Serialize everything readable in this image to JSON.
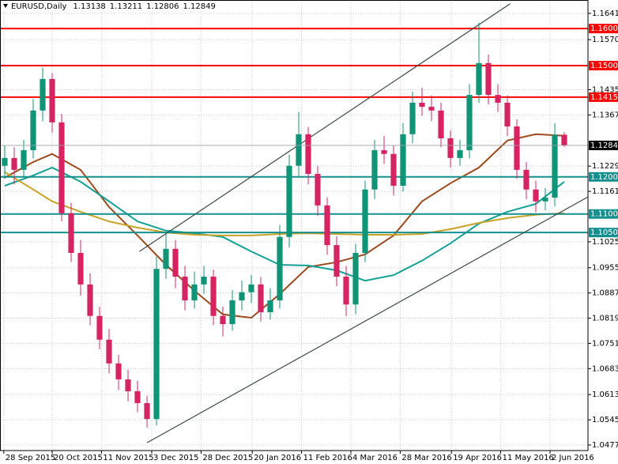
{
  "chart_data": {
    "type": "candlestick",
    "title": "EURUSD,Daily",
    "up_color": "#0f9478",
    "down_color": "#d62463",
    "open": [
      1.123,
      1.1251,
      1.1219,
      1.1272,
      1.1379,
      1.1464,
      1.1347,
      1.1102,
      1.0995,
      1.091,
      1.0825,
      1.0761,
      1.0697,
      1.0654,
      1.0622,
      1.059,
      1.0547,
      1.0952,
      1.1006,
      1.0931,
      1.0867,
      1.091,
      1.0931,
      1.0825,
      1.0803,
      1.0867,
      1.0889,
      1.091,
      1.0835,
      1.0867,
      1.1038,
      1.123,
      1.1315,
      1.1208,
      1.1123,
      1.1016,
      1.0931,
      1.0856,
      1.0995,
      1.1166,
      1.1272,
      1.1262,
      1.1176,
      1.1315,
      1.14,
      1.1389,
      1.1379,
      1.1304,
      1.1251,
      1.1272,
      1.1421,
      1.1507,
      1.1421,
      1.14,
      1.1336,
      1.1219,
      1.1166,
      1.1134,
      1.1144,
      1.13138
    ],
    "high": [
      1.1285,
      1.128,
      1.13,
      1.141,
      1.1495,
      1.148,
      1.137,
      1.113,
      1.103,
      1.094,
      1.085,
      1.079,
      1.072,
      1.068,
      1.065,
      1.061,
      1.0985,
      1.105,
      1.103,
      1.096,
      1.0945,
      1.096,
      1.095,
      1.085,
      1.0895,
      1.092,
      1.0935,
      1.093,
      1.09,
      1.107,
      1.126,
      1.1375,
      1.1335,
      1.123,
      1.1145,
      1.104,
      1.096,
      1.102,
      1.119,
      1.13,
      1.131,
      1.1285,
      1.1345,
      1.143,
      1.144,
      1.142,
      1.14,
      1.1325,
      1.13,
      1.145,
      1.1616,
      1.153,
      1.145,
      1.142,
      1.1355,
      1.124,
      1.119,
      1.117,
      1.1345,
      1.13211
    ],
    "low": [
      1.1195,
      1.118,
      1.12,
      1.125,
      1.135,
      1.132,
      1.108,
      1.097,
      1.088,
      1.08,
      1.0735,
      1.067,
      1.0625,
      1.0595,
      1.0565,
      1.0524,
      1.053,
      1.0925,
      1.09,
      1.084,
      1.0845,
      1.0885,
      1.08,
      1.077,
      1.0785,
      1.084,
      1.086,
      1.081,
      1.0815,
      1.0845,
      1.101,
      1.12,
      1.118,
      1.1095,
      1.099,
      1.0905,
      1.0825,
      1.083,
      1.097,
      1.114,
      1.1235,
      1.115,
      1.116,
      1.129,
      1.1365,
      1.135,
      1.128,
      1.1225,
      1.123,
      1.125,
      1.14,
      1.1395,
      1.1375,
      1.131,
      1.1195,
      1.114,
      1.1105,
      1.111,
      1.112,
      1.12806
    ],
    "close": [
      1.1251,
      1.1219,
      1.1272,
      1.1379,
      1.1464,
      1.1347,
      1.1102,
      1.0995,
      1.091,
      1.0825,
      1.0761,
      1.0697,
      1.0654,
      1.0622,
      1.059,
      1.0547,
      1.0952,
      1.1006,
      1.0931,
      1.0867,
      1.091,
      1.0931,
      1.0825,
      1.0803,
      1.0867,
      1.0889,
      1.091,
      1.0835,
      1.0867,
      1.1038,
      1.123,
      1.1315,
      1.1208,
      1.1123,
      1.1016,
      1.0931,
      1.0856,
      1.0995,
      1.1166,
      1.1272,
      1.1262,
      1.1176,
      1.1315,
      1.14,
      1.1389,
      1.1379,
      1.1304,
      1.1251,
      1.1272,
      1.1421,
      1.1507,
      1.1421,
      1.14,
      1.1336,
      1.1219,
      1.1166,
      1.1134,
      1.1144,
      1.13138,
      1.12849
    ],
    "xlim": [
      -0.5,
      61.5
    ],
    "xticks": [
      {
        "value": -0.1,
        "label": "28 Sep 2015"
      },
      {
        "value": 5.0,
        "label": "20 Oct 2015"
      },
      {
        "value": 10.2,
        "label": "11 Nov 2015"
      },
      {
        "value": 15.5,
        "label": "3 Dec 2015"
      },
      {
        "value": 20.7,
        "label": "28 Dec 2015"
      },
      {
        "value": 26.1,
        "label": "20 Jan 2016"
      },
      {
        "value": 31.3,
        "label": "11 Feb 2016"
      },
      {
        "value": 36.5,
        "label": "4 Mar 2016"
      },
      {
        "value": 41.7,
        "label": "28 Mar 2016"
      },
      {
        "value": 47.1,
        "label": "19 Apr 2016"
      },
      {
        "value": 52.3,
        "label": "11 May 2016"
      },
      {
        "value": 57.5,
        "label": "2 Jun 2016"
      }
    ],
    "ylim": [
      1.0462,
      1.1677
    ],
    "yticks": [
      {
        "value": 1.1641,
        "label": "1.16410"
      },
      {
        "value": 1.157,
        "label": "1.15700"
      },
      {
        "value": 1.1435,
        "label": "1.14350"
      },
      {
        "value": 1.1367,
        "label": "1.13670"
      },
      {
        "value": 1.1229,
        "label": "1.12290"
      },
      {
        "value": 1.1161,
        "label": "1.11610"
      },
      {
        "value": 1.1025,
        "label": "1.10250"
      },
      {
        "value": 1.0955,
        "label": "1.09550"
      },
      {
        "value": 1.0887,
        "label": "1.08870"
      },
      {
        "value": 1.0819,
        "label": "1.08190"
      },
      {
        "value": 1.0751,
        "label": "1.07510"
      },
      {
        "value": 1.0683,
        "label": "1.06830"
      },
      {
        "value": 1.0613,
        "label": "1.06130"
      },
      {
        "value": 1.0545,
        "label": "1.05450"
      },
      {
        "value": 1.0477,
        "label": "1.04770"
      }
    ],
    "grid": true,
    "indicators": [
      {
        "color": "#9c4a1c",
        "x": [
          0,
          3,
          5,
          8,
          11,
          14,
          17,
          20,
          23,
          26,
          29,
          32,
          35,
          38,
          41,
          44,
          47,
          50,
          53,
          56,
          59
        ],
        "values": [
          1.1198,
          1.124,
          1.1262,
          1.1219,
          1.1119,
          1.1042,
          1.0963,
          1.0893,
          1.0829,
          1.082,
          1.0884,
          1.0957,
          1.097,
          1.0991,
          1.1042,
          1.1134,
          1.1183,
          1.1225,
          1.1298,
          1.1315,
          1.1311
        ]
      },
      {
        "color": "#13a096",
        "x": [
          0,
          3,
          5,
          8,
          11,
          14,
          17,
          20,
          23,
          26,
          29,
          32,
          35,
          38,
          41,
          44,
          47,
          50,
          53,
          56,
          59
        ],
        "values": [
          1.1176,
          1.1204,
          1.1225,
          1.1187,
          1.1134,
          1.108,
          1.1055,
          1.1048,
          1.1038,
          1.0999,
          1.0963,
          1.0961,
          1.0948,
          1.092,
          1.0935,
          1.0974,
          1.1021,
          1.1074,
          1.1106,
          1.1127,
          1.1187
        ]
      },
      {
        "color": "#c9a227",
        "x": [
          0,
          3,
          5,
          8,
          11,
          14,
          17,
          20,
          23,
          26,
          29,
          32,
          35,
          38,
          41,
          44,
          47,
          50,
          53,
          56,
          59
        ],
        "values": [
          1.1213,
          1.1166,
          1.1134,
          1.1106,
          1.108,
          1.1063,
          1.105,
          1.1044,
          1.1042,
          1.1042,
          1.1046,
          1.1048,
          1.1046,
          1.1044,
          1.1044,
          1.1046,
          1.1059,
          1.1076,
          1.1089,
          1.1098,
          1.1102
        ]
      }
    ],
    "trendlines": [
      {
        "color": "#3c4a48",
        "x": [
          14.2,
          53.3
        ],
        "y": [
          1.0999,
          1.1667
        ]
      },
      {
        "color": "#3c4a48",
        "x": [
          15.0,
          61.5
        ],
        "y": [
          1.0483,
          1.1146
        ]
      }
    ],
    "levels": [
      {
        "value": 1.16,
        "label": "1.16000",
        "color": "#ff0000"
      },
      {
        "value": 1.15,
        "label": "1.15000",
        "color": "#ff0000"
      },
      {
        "value": 1.1415,
        "label": "1.14150",
        "color": "#ff0000"
      },
      {
        "value": 1.12,
        "label": "1.12000",
        "color": "#13908e"
      },
      {
        "value": 1.11,
        "label": "1.11000",
        "color": "#13908e"
      },
      {
        "value": 1.105,
        "label": "1.10500",
        "color": "#13908e"
      }
    ]
  }
}
